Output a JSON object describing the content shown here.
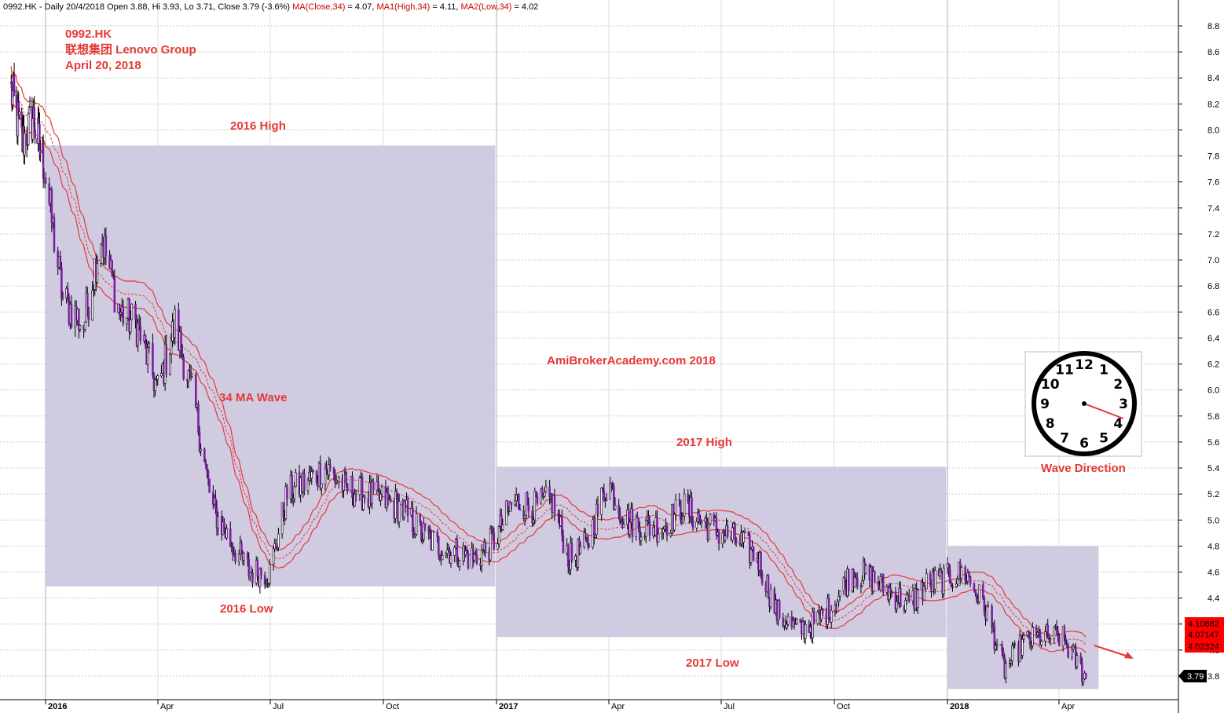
{
  "header": {
    "ticker_line": "0992.HK - Daily 20/4/2018 Open 3.88, Hi 3.93, Lo 3.71, Close 3.79 (-3.6%)",
    "ma_close": "MA(Close,34)",
    "ma_close_val": " = 4.07, ",
    "ma_high": "MA1(High,34)",
    "ma_high_val": " = 4.11, ",
    "ma_low": "MA2(Low,34)",
    "ma_low_val": " = 4.02"
  },
  "title": {
    "ticker": "0992.HK",
    "name": "联想集团 Lenovo Group",
    "date": "April 20, 2018"
  },
  "annotations": {
    "high_2016": "2016 High",
    "low_2016": "2016 Low",
    "ma_wave": "34 MA Wave",
    "watermark": "AmiBrokerAcademy.com   2018",
    "high_2017": "2017 High",
    "low_2017": "2017 Low",
    "wave_direction": "Wave Direction"
  },
  "price_labels": {
    "ma_high": "4.10882",
    "ma_close": "4.07147",
    "ma_low": "4.02324",
    "last_close": "3.79"
  },
  "colors": {
    "candle": "#7b1fa2",
    "box": "#cfc8e0",
    "ma": "#e53935",
    "annotation": "#e53935",
    "price_box": "#ff0000"
  },
  "clock": {
    "numbers": [
      "12",
      "1",
      "2",
      "3",
      "4",
      "5",
      "6",
      "7",
      "8",
      "9",
      "10",
      "11"
    ],
    "hand_points_to": "4"
  },
  "chart_data": {
    "type": "candlestick",
    "title": "0992.HK 联想集团 Lenovo Group",
    "ylim": [
      3.7,
      8.9
    ],
    "y_ticks": [
      "3.8",
      "4.0",
      "4.2",
      "4.4",
      "4.6",
      "4.8",
      "5.0",
      "5.2",
      "5.4",
      "5.6",
      "5.8",
      "6.0",
      "6.2",
      "6.4",
      "6.6",
      "6.8",
      "7.0",
      "7.2",
      "7.4",
      "7.6",
      "7.8",
      "8.0",
      "8.2",
      "8.4",
      "8.6",
      "8.8"
    ],
    "x_ticks": [
      {
        "label": "2016",
        "bold": true
      },
      {
        "label": "Apr",
        "bold": false
      },
      {
        "label": "Jul",
        "bold": false
      },
      {
        "label": "Oct",
        "bold": false
      },
      {
        "label": "2017",
        "bold": true
      },
      {
        "label": "Apr",
        "bold": false
      },
      {
        "label": "Jul",
        "bold": false
      },
      {
        "label": "Oct",
        "bold": false
      },
      {
        "label": "2018",
        "bold": true
      },
      {
        "label": "Apr",
        "bold": false
      }
    ],
    "grid": true,
    "x_range": [
      "2015-11",
      "2018-05"
    ],
    "close_path": [
      [
        "2015-11-16",
        8.3
      ],
      [
        "2015-12-01",
        7.9
      ],
      [
        "2015-12-15",
        8.1
      ],
      [
        "2015-12-31",
        7.7
      ],
      [
        "2016-01-15",
        6.7
      ],
      [
        "2016-02-01",
        6.5
      ],
      [
        "2016-02-15",
        7.2
      ],
      [
        "2016-03-01",
        6.6
      ],
      [
        "2016-03-15",
        6.5
      ],
      [
        "2016-04-01",
        6.0
      ],
      [
        "2016-04-15",
        6.5
      ],
      [
        "2016-05-01",
        5.9
      ],
      [
        "2016-05-15",
        5.1
      ],
      [
        "2016-06-01",
        4.8
      ],
      [
        "2016-06-15",
        4.6
      ],
      [
        "2016-07-01",
        4.6
      ],
      [
        "2016-07-15",
        5.2
      ],
      [
        "2016-08-01",
        5.3
      ],
      [
        "2016-08-15",
        5.4
      ],
      [
        "2016-09-01",
        5.25
      ],
      [
        "2016-09-15",
        5.2
      ],
      [
        "2016-10-01",
        5.15
      ],
      [
        "2016-10-15",
        5.1
      ],
      [
        "2016-11-01",
        4.9
      ],
      [
        "2016-11-15",
        4.8
      ],
      [
        "2016-12-01",
        4.75
      ],
      [
        "2016-12-15",
        4.7
      ],
      [
        "2016-12-31",
        4.85
      ],
      [
        "2017-01-15",
        5.15
      ],
      [
        "2017-02-01",
        5.1
      ],
      [
        "2017-02-15",
        5.15
      ],
      [
        "2017-03-01",
        4.7
      ],
      [
        "2017-03-15",
        4.8
      ],
      [
        "2017-04-01",
        5.3
      ],
      [
        "2017-04-15",
        5.0
      ],
      [
        "2017-05-01",
        4.95
      ],
      [
        "2017-05-15",
        4.95
      ],
      [
        "2017-06-01",
        5.1
      ],
      [
        "2017-06-15",
        5.0
      ],
      [
        "2017-07-01",
        4.9
      ],
      [
        "2017-07-15",
        4.85
      ],
      [
        "2017-08-01",
        4.7
      ],
      [
        "2017-08-15",
        4.3
      ],
      [
        "2017-09-01",
        4.15
      ],
      [
        "2017-09-15",
        4.2
      ],
      [
        "2017-10-01",
        4.35
      ],
      [
        "2017-10-15",
        4.6
      ],
      [
        "2017-11-01",
        4.55
      ],
      [
        "2017-11-15",
        4.45
      ],
      [
        "2017-12-01",
        4.35
      ],
      [
        "2017-12-15",
        4.5
      ],
      [
        "2017-12-31",
        4.55
      ],
      [
        "2018-01-15",
        4.6
      ],
      [
        "2018-02-01",
        4.3
      ],
      [
        "2018-02-15",
        3.85
      ],
      [
        "2018-03-01",
        4.05
      ],
      [
        "2018-03-15",
        4.1
      ],
      [
        "2018-04-01",
        4.1
      ],
      [
        "2018-04-20",
        3.79
      ]
    ],
    "last": {
      "open": 3.88,
      "high": 3.93,
      "low": 3.71,
      "close": 3.79,
      "change_pct": -3.6
    },
    "moving_averages": [
      {
        "name": "MA(Close,34)",
        "last": 4.07
      },
      {
        "name": "MA1(High,34)",
        "last": 4.11
      },
      {
        "name": "MA2(Low,34)",
        "last": 4.02
      }
    ],
    "zones": [
      {
        "label": "2016 High / 2016 Low",
        "start": "2016-01-01",
        "end": "2016-12-31",
        "high": 7.88,
        "low": 4.49
      },
      {
        "label": "2017 High / 2017 Low",
        "start": "2017-01-01",
        "end": "2017-12-31",
        "high": 5.41,
        "low": 4.1
      },
      {
        "label": "",
        "start": "2018-01-01",
        "end": "2018-04-30",
        "high": 4.8,
        "low": 3.7
      }
    ]
  }
}
